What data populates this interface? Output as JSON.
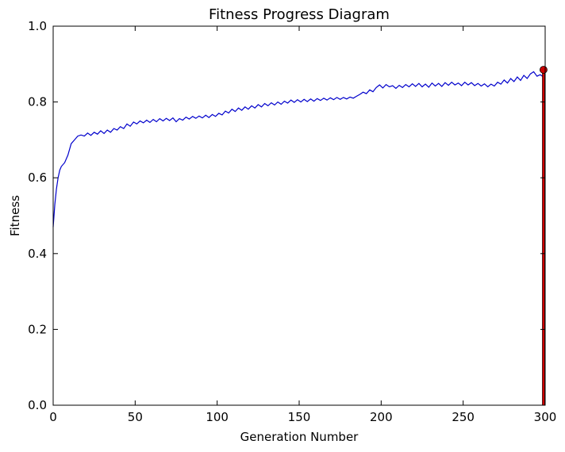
{
  "chart_data": {
    "type": "line",
    "title": "Fitness Progress Diagram",
    "xlabel": "Generation Number",
    "ylabel": "Fitness",
    "xlim": [
      0,
      300
    ],
    "ylim": [
      0.0,
      1.0
    ],
    "x_ticks": [
      0,
      50,
      100,
      150,
      200,
      250,
      300
    ],
    "y_ticks": [
      0.0,
      0.2,
      0.4,
      0.6,
      0.8,
      1.0
    ],
    "x_tick_labels": [
      "0",
      "50",
      "100",
      "150",
      "200",
      "250",
      "300"
    ],
    "y_tick_labels": [
      "0.0",
      "0.2",
      "0.4",
      "0.6",
      "0.8",
      "1.0"
    ],
    "grid": false,
    "series": [
      {
        "color": "#0000cc",
        "points": [
          [
            0,
            0.47
          ],
          [
            1,
            0.53
          ],
          [
            2,
            0.57
          ],
          [
            3,
            0.6
          ],
          [
            4,
            0.62
          ],
          [
            5,
            0.63
          ],
          [
            7,
            0.64
          ],
          [
            9,
            0.66
          ],
          [
            11,
            0.69
          ],
          [
            13,
            0.7
          ],
          [
            15,
            0.71
          ],
          [
            17,
            0.713
          ],
          [
            19,
            0.71
          ],
          [
            21,
            0.718
          ],
          [
            23,
            0.712
          ],
          [
            25,
            0.72
          ],
          [
            27,
            0.715
          ],
          [
            29,
            0.724
          ],
          [
            31,
            0.717
          ],
          [
            33,
            0.726
          ],
          [
            35,
            0.72
          ],
          [
            37,
            0.73
          ],
          [
            39,
            0.726
          ],
          [
            41,
            0.735
          ],
          [
            43,
            0.73
          ],
          [
            45,
            0.742
          ],
          [
            47,
            0.736
          ],
          [
            49,
            0.747
          ],
          [
            51,
            0.742
          ],
          [
            53,
            0.75
          ],
          [
            55,
            0.745
          ],
          [
            57,
            0.752
          ],
          [
            59,
            0.746
          ],
          [
            61,
            0.754
          ],
          [
            63,
            0.748
          ],
          [
            65,
            0.756
          ],
          [
            67,
            0.75
          ],
          [
            69,
            0.757
          ],
          [
            71,
            0.751
          ],
          [
            73,
            0.758
          ],
          [
            75,
            0.748
          ],
          [
            77,
            0.756
          ],
          [
            79,
            0.752
          ],
          [
            81,
            0.76
          ],
          [
            83,
            0.755
          ],
          [
            85,
            0.762
          ],
          [
            87,
            0.757
          ],
          [
            89,
            0.763
          ],
          [
            91,
            0.758
          ],
          [
            93,
            0.765
          ],
          [
            95,
            0.759
          ],
          [
            97,
            0.767
          ],
          [
            99,
            0.762
          ],
          [
            101,
            0.77
          ],
          [
            103,
            0.766
          ],
          [
            105,
            0.776
          ],
          [
            107,
            0.771
          ],
          [
            109,
            0.781
          ],
          [
            111,
            0.775
          ],
          [
            113,
            0.784
          ],
          [
            115,
            0.778
          ],
          [
            117,
            0.787
          ],
          [
            119,
            0.781
          ],
          [
            121,
            0.79
          ],
          [
            123,
            0.784
          ],
          [
            125,
            0.793
          ],
          [
            127,
            0.787
          ],
          [
            129,
            0.796
          ],
          [
            131,
            0.79
          ],
          [
            133,
            0.798
          ],
          [
            135,
            0.792
          ],
          [
            137,
            0.8
          ],
          [
            139,
            0.794
          ],
          [
            141,
            0.802
          ],
          [
            143,
            0.797
          ],
          [
            145,
            0.805
          ],
          [
            147,
            0.799
          ],
          [
            149,
            0.806
          ],
          [
            151,
            0.8
          ],
          [
            153,
            0.807
          ],
          [
            155,
            0.801
          ],
          [
            157,
            0.808
          ],
          [
            159,
            0.802
          ],
          [
            161,
            0.809
          ],
          [
            163,
            0.804
          ],
          [
            165,
            0.81
          ],
          [
            167,
            0.805
          ],
          [
            169,
            0.811
          ],
          [
            171,
            0.806
          ],
          [
            173,
            0.812
          ],
          [
            175,
            0.807
          ],
          [
            177,
            0.812
          ],
          [
            179,
            0.808
          ],
          [
            181,
            0.813
          ],
          [
            183,
            0.81
          ],
          [
            185,
            0.815
          ],
          [
            187,
            0.82
          ],
          [
            189,
            0.826
          ],
          [
            191,
            0.822
          ],
          [
            193,
            0.832
          ],
          [
            195,
            0.827
          ],
          [
            197,
            0.838
          ],
          [
            199,
            0.845
          ],
          [
            201,
            0.837
          ],
          [
            203,
            0.846
          ],
          [
            205,
            0.84
          ],
          [
            207,
            0.843
          ],
          [
            209,
            0.836
          ],
          [
            211,
            0.844
          ],
          [
            213,
            0.838
          ],
          [
            215,
            0.846
          ],
          [
            217,
            0.84
          ],
          [
            219,
            0.848
          ],
          [
            221,
            0.841
          ],
          [
            223,
            0.849
          ],
          [
            225,
            0.84
          ],
          [
            227,
            0.847
          ],
          [
            229,
            0.839
          ],
          [
            231,
            0.85
          ],
          [
            233,
            0.842
          ],
          [
            235,
            0.849
          ],
          [
            237,
            0.841
          ],
          [
            239,
            0.851
          ],
          [
            241,
            0.844
          ],
          [
            243,
            0.852
          ],
          [
            245,
            0.845
          ],
          [
            247,
            0.85
          ],
          [
            249,
            0.843
          ],
          [
            251,
            0.852
          ],
          [
            253,
            0.845
          ],
          [
            255,
            0.851
          ],
          [
            257,
            0.843
          ],
          [
            259,
            0.849
          ],
          [
            261,
            0.842
          ],
          [
            263,
            0.848
          ],
          [
            265,
            0.84
          ],
          [
            267,
            0.847
          ],
          [
            269,
            0.842
          ],
          [
            271,
            0.852
          ],
          [
            273,
            0.847
          ],
          [
            275,
            0.858
          ],
          [
            277,
            0.85
          ],
          [
            279,
            0.862
          ],
          [
            281,
            0.854
          ],
          [
            283,
            0.866
          ],
          [
            285,
            0.857
          ],
          [
            287,
            0.87
          ],
          [
            289,
            0.862
          ],
          [
            291,
            0.874
          ],
          [
            293,
            0.88
          ],
          [
            295,
            0.868
          ],
          [
            297,
            0.872
          ],
          [
            299,
            0.866
          ],
          [
            300,
            0.87
          ]
        ]
      }
    ],
    "marker": {
      "x": 299,
      "y": 0.885,
      "color": "#cc0000"
    }
  }
}
